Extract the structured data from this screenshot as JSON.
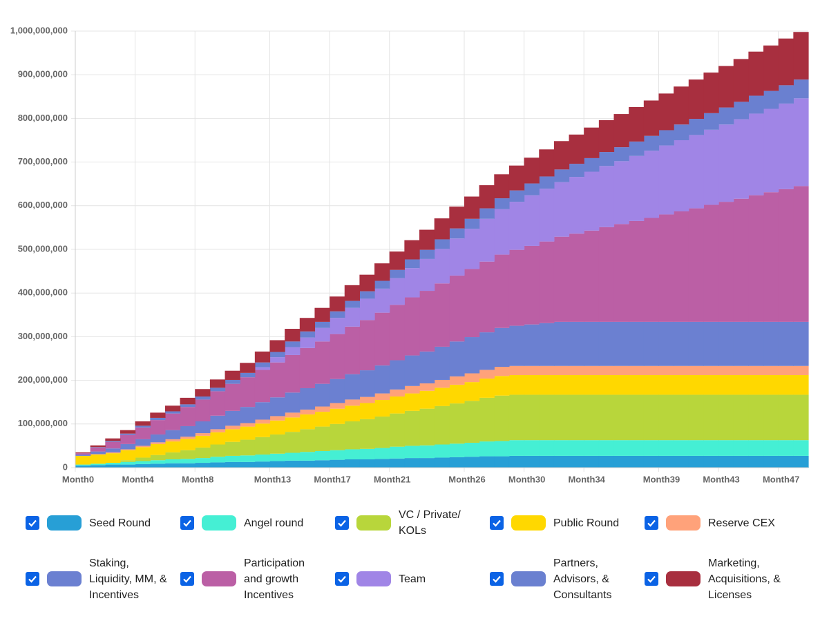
{
  "chart_data": {
    "type": "stacked-step-area",
    "categories": [
      "Month0",
      null,
      null,
      null,
      "Month4",
      null,
      null,
      null,
      "Month8",
      null,
      null,
      null,
      null,
      "Month13",
      null,
      null,
      null,
      "Month17",
      null,
      null,
      null,
      "Month21",
      null,
      null,
      null,
      null,
      "Month26",
      null,
      null,
      null,
      "Month30",
      null,
      null,
      null,
      "Month34",
      null,
      null,
      null,
      null,
      "Month39",
      null,
      null,
      null,
      "Month43",
      null,
      null,
      null,
      "Month47",
      null
    ],
    "ylim": [
      0,
      1000000000
    ],
    "yticks": [
      0,
      {
        "value": 100000000,
        "label": "100,000,000"
      },
      {
        "value": 200000000,
        "label": "200,000,000"
      },
      {
        "value": 300000000,
        "label": "300,000,000"
      },
      {
        "value": 400000000,
        "label": "400,000,000"
      },
      {
        "value": 500000000,
        "label": "500,000,000"
      },
      {
        "value": 600000000,
        "label": "600,000,000"
      },
      {
        "value": 700000000,
        "label": "700,000,000"
      },
      {
        "value": 800000000,
        "label": "800,000,000"
      },
      {
        "value": 900000000,
        "label": "900,000,000"
      },
      {
        "value": 1000000000,
        "label": "1,000,000,000"
      }
    ],
    "grid": true,
    "series": [
      {
        "name": "Seed Round",
        "color": "#279fd6",
        "values": [
          5000000.0,
          6000000.0,
          7000000.0,
          7000000.0,
          8000000.0,
          9000000.0,
          10000000.0,
          10000000.0,
          11000000.0,
          12000000.0,
          13000000.0,
          13000000.0,
          14000000.0,
          15000000.0,
          16000000.0,
          16000000.0,
          17000000.0,
          18000000.0,
          19000000.0,
          19000000.0,
          20000000.0,
          21000000.0,
          22000000.0,
          22000000.0,
          23000000.0,
          24000000.0,
          25000000.0,
          26000000.0,
          26000000.0,
          27000000.0,
          27000000.0,
          27000000.0,
          27000000.0,
          27000000.0,
          27000000.0,
          27000000.0,
          27000000.0,
          27000000.0,
          27000000.0,
          27000000.0,
          27000000.0,
          27000000.0,
          27000000.0,
          27000000.0,
          27000000.0,
          27000000.0,
          27000000.0,
          27000000.0,
          27000000.0
        ]
      },
      {
        "name": "Angel round",
        "color": "#45efd4",
        "values": [
          2000000.0,
          3000000.0,
          4000000.0,
          6000000.0,
          7000000.0,
          8000000.0,
          9000000.0,
          10000000.0,
          11000000.0,
          13000000.0,
          14000000.0,
          15000000.0,
          16000000.0,
          17000000.0,
          18000000.0,
          20000000.0,
          21000000.0,
          22000000.0,
          23000000.0,
          24000000.0,
          25000000.0,
          27000000.0,
          28000000.0,
          29000000.0,
          30000000.0,
          31000000.0,
          32000000.0,
          34000000.0,
          35000000.0,
          36000000.0,
          36000000.0,
          36000000.0,
          36000000.0,
          36000000.0,
          36000000.0,
          36000000.0,
          36000000.0,
          36000000.0,
          36000000.0,
          36000000.0,
          36000000.0,
          36000000.0,
          36000000.0,
          36000000.0,
          36000000.0,
          36000000.0,
          36000000.0,
          36000000.0,
          36000000.0
        ]
      },
      {
        "name": "VC / Private/ KOLs",
        "color": "#b8d63b",
        "values": [
          0,
          0,
          0,
          4000000.0,
          8000000.0,
          12000000.0,
          16000000.0,
          20000000.0,
          24000000.0,
          28000000.0,
          32000000.0,
          36000000.0,
          40000000.0,
          44000000.0,
          48000000.0,
          52000000.0,
          56000000.0,
          60000000.0,
          64000000.0,
          68000000.0,
          72000000.0,
          76000000.0,
          80000000.0,
          84000000.0,
          88000000.0,
          92000000.0,
          96000000.0,
          100000000.0,
          104000000.0,
          104000000.0,
          104000000.0,
          104000000.0,
          104000000.0,
          104000000.0,
          104000000.0,
          104000000.0,
          104000000.0,
          104000000.0,
          104000000.0,
          104000000.0,
          104000000.0,
          104000000.0,
          104000000.0,
          104000000.0,
          104000000.0,
          104000000.0,
          104000000.0,
          104000000.0,
          104000000.0
        ]
      },
      {
        "name": "Public Round",
        "color": "#ffd800",
        "values": [
          20000000.0,
          21000000.0,
          22000000.0,
          23000000.0,
          24000000.0,
          25000000.0,
          25000000.0,
          26000000.0,
          27000000.0,
          28000000.0,
          29000000.0,
          30000000.0,
          31000000.0,
          32000000.0,
          33000000.0,
          34000000.0,
          34000000.0,
          35000000.0,
          36000000.0,
          37000000.0,
          38000000.0,
          39000000.0,
          40000000.0,
          41000000.0,
          42000000.0,
          43000000.0,
          43000000.0,
          44000000.0,
          45000000.0,
          45000000.0,
          45000000.0,
          45000000.0,
          45000000.0,
          45000000.0,
          45000000.0,
          45000000.0,
          45000000.0,
          45000000.0,
          45000000.0,
          45000000.0,
          45000000.0,
          45000000.0,
          45000000.0,
          45000000.0,
          45000000.0,
          45000000.0,
          45000000.0,
          45000000.0,
          45000000.0
        ]
      },
      {
        "name": "Reserve CEX",
        "color": "#ffa27a",
        "values": [
          0,
          1000000.0,
          2000000.0,
          2000000.0,
          3000000.0,
          4000000.0,
          5000000.0,
          5000000.0,
          6000000.0,
          7000000.0,
          8000000.0,
          8000000.0,
          9000000.0,
          10000000.0,
          11000000.0,
          11000000.0,
          12000000.0,
          13000000.0,
          14000000.0,
          14000000.0,
          15000000.0,
          16000000.0,
          17000000.0,
          17000000.0,
          18000000.0,
          19000000.0,
          20000000.0,
          20000000.0,
          21000000.0,
          21000000.0,
          21000000.0,
          21000000.0,
          21000000.0,
          21000000.0,
          21000000.0,
          21000000.0,
          21000000.0,
          21000000.0,
          21000000.0,
          21000000.0,
          21000000.0,
          21000000.0,
          21000000.0,
          21000000.0,
          21000000.0,
          21000000.0,
          21000000.0,
          21000000.0,
          21000000.0
        ]
      },
      {
        "name": "Staking, Liquidity, MM, & Incentives",
        "color": "#6b80d1",
        "values": [
          3000000.0,
          6000000.0,
          9000000.0,
          12000000.0,
          15000000.0,
          18000000.0,
          21000000.0,
          24000000.0,
          27000000.0,
          31000000.0,
          34000000.0,
          37000000.0,
          40000000.0,
          43000000.0,
          46000000.0,
          49000000.0,
          52000000.0,
          55000000.0,
          58000000.0,
          61000000.0,
          64000000.0,
          67000000.0,
          70000000.0,
          73000000.0,
          76000000.0,
          80000000.0,
          83000000.0,
          86000000.0,
          89000000.0,
          92000000.0,
          95000000.0,
          98000000.0,
          101000000.0,
          101000000.0,
          101000000.0,
          101000000.0,
          101000000.0,
          101000000.0,
          101000000.0,
          101000000.0,
          101000000.0,
          101000000.0,
          101000000.0,
          101000000.0,
          101000000.0,
          101000000.0,
          101000000.0,
          101000000.0,
          101000000.0
        ]
      },
      {
        "name": "Participation and growth Incentives",
        "color": "#bb5fa5",
        "values": [
          3000000.0,
          9000000.0,
          15000000.0,
          21000000.0,
          27000000.0,
          33000000.0,
          38000000.0,
          44000000.0,
          50000000.0,
          56000000.0,
          62000000.0,
          68000000.0,
          74000000.0,
          80000000.0,
          86000000.0,
          92000000.0,
          97000000.0,
          103000000.0,
          109000000.0,
          115000000.0,
          121000000.0,
          127000000.0,
          133000000.0,
          139000000.0,
          145000000.0,
          151000000.0,
          156000000.0,
          162000000.0,
          168000000.0,
          174000000.0,
          180000000.0,
          187000000.0,
          195000000.0,
          202000000.0,
          209000000.0,
          217000000.0,
          224000000.0,
          231000000.0,
          238000000.0,
          246000000.0,
          253000000.0,
          260000000.0,
          268000000.0,
          275000000.0,
          282000000.0,
          290000000.0,
          297000000.0,
          304000000.0,
          311000000.0
        ]
      },
      {
        "name": "Team",
        "color": "#a085e6",
        "values": [
          0,
          0,
          0,
          0,
          0,
          0,
          0,
          0,
          0,
          0,
          0,
          0,
          6000000.0,
          12000000.0,
          18000000.0,
          24000000.0,
          31000000.0,
          37000000.0,
          43000000.0,
          49000000.0,
          55000000.0,
          61000000.0,
          67000000.0,
          73000000.0,
          79000000.0,
          85000000.0,
          92000000.0,
          98000000.0,
          104000000.0,
          110000000.0,
          116000000.0,
          121000000.0,
          125000000.0,
          130000000.0,
          135000000.0,
          140000000.0,
          144000000.0,
          149000000.0,
          154000000.0,
          158000000.0,
          163000000.0,
          168000000.0,
          172000000.0,
          177000000.0,
          182000000.0,
          187000000.0,
          191000000.0,
          196000000.0,
          201000000.0
        ]
      },
      {
        "name": "Partners, Advisors, & Consultants",
        "color": "#6a80d0",
        "values": [
          0,
          1000000.0,
          2000000.0,
          3000000.0,
          4000000.0,
          5000000.0,
          5000000.0,
          6000000.0,
          7000000.0,
          8000000.0,
          9000000.0,
          10000000.0,
          11000000.0,
          12000000.0,
          13000000.0,
          14000000.0,
          14000000.0,
          15000000.0,
          16000000.0,
          17000000.0,
          18000000.0,
          19000000.0,
          20000000.0,
          21000000.0,
          22000000.0,
          23000000.0,
          23000000.0,
          24000000.0,
          25000000.0,
          26000000.0,
          27000000.0,
          28000000.0,
          29000000.0,
          30000000.0,
          31000000.0,
          32000000.0,
          32000000.0,
          33000000.0,
          34000000.0,
          35000000.0,
          36000000.0,
          37000000.0,
          38000000.0,
          39000000.0,
          40000000.0,
          41000000.0,
          41000000.0,
          42000000.0,
          43000000.0
        ]
      },
      {
        "name": "Marketing, Acquisitions, & Licenses",
        "color": "#a82f3f",
        "values": [
          2000000.0,
          4000000.0,
          6000000.0,
          8000000.0,
          10000000.0,
          12000000.0,
          13000000.0,
          15000000.0,
          17000000.0,
          19000000.0,
          21000000.0,
          23000000.0,
          25000000.0,
          27000000.0,
          29000000.0,
          31000000.0,
          32000000.0,
          34000000.0,
          36000000.0,
          38000000.0,
          40000000.0,
          42000000.0,
          44000000.0,
          46000000.0,
          48000000.0,
          50000000.0,
          51000000.0,
          53000000.0,
          55000000.0,
          57000000.0,
          59000000.0,
          62000000.0,
          65000000.0,
          67000000.0,
          70000000.0,
          73000000.0,
          76000000.0,
          79000000.0,
          81000000.0,
          84000000.0,
          87000000.0,
          90000000.0,
          93000000.0,
          95000000.0,
          98000000.0,
          101000000.0,
          104000000.0,
          107000000.0,
          109000000.0
        ]
      }
    ]
  }
}
